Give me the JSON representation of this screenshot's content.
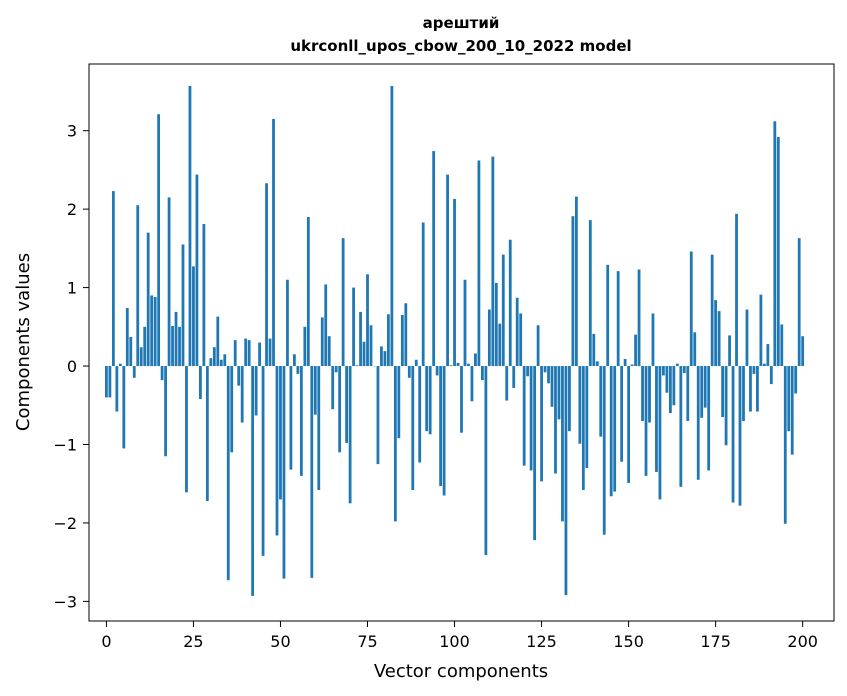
{
  "chart_data": {
    "type": "bar",
    "title_line1": "арештий",
    "title_line2": "ukrconll_upos_cbow_200_10_2022 model",
    "xlabel": "Vector components",
    "ylabel": "Components values",
    "xlim": [
      -5,
      209
    ],
    "ylim": [
      -3.25,
      3.85
    ],
    "xticks": [
      0,
      25,
      50,
      75,
      100,
      125,
      150,
      175,
      200
    ],
    "xtick_labels": [
      "0",
      "25",
      "50",
      "75",
      "100",
      "125",
      "150",
      "175",
      "200"
    ],
    "yticks": [
      -3,
      -2,
      -1,
      0,
      1,
      2,
      3
    ],
    "ytick_labels": [
      "−3",
      "−2",
      "−1",
      "0",
      "1",
      "2",
      "3"
    ],
    "grid": false,
    "bar_color": "#1f77b4",
    "values": [
      -0.4,
      -0.4,
      2.23,
      -0.58,
      0.03,
      -1.05,
      0.74,
      0.37,
      -0.15,
      2.05,
      0.24,
      0.5,
      1.7,
      0.9,
      0.88,
      3.21,
      -0.18,
      -1.15,
      2.15,
      0.51,
      0.69,
      0.5,
      1.55,
      -1.61,
      3.57,
      1.27,
      2.44,
      -0.42,
      1.81,
      -1.72,
      0.1,
      0.24,
      0.63,
      0.08,
      0.15,
      -2.73,
      -1.1,
      0.33,
      -0.25,
      -0.72,
      0.35,
      0.33,
      -2.93,
      -0.63,
      0.3,
      -2.42,
      2.33,
      0.35,
      3.15,
      -2.16,
      -1.7,
      -2.71,
      1.1,
      -1.32,
      0.15,
      -0.1,
      -1.4,
      0.5,
      1.9,
      -2.7,
      -0.62,
      -1.58,
      0.62,
      1.04,
      0.38,
      -0.55,
      -0.08,
      -1.1,
      1.63,
      -0.98,
      -1.75,
      1.0,
      0.01,
      0.69,
      0.31,
      1.17,
      0.52,
      0.0,
      -1.25,
      0.25,
      0.19,
      0.66,
      3.57,
      -1.98,
      -0.92,
      0.65,
      0.8,
      -0.15,
      -1.58,
      0.08,
      -1.23,
      1.83,
      -0.83,
      -0.87,
      2.74,
      -0.12,
      -1.53,
      -1.65,
      2.44,
      0.01,
      2.13,
      0.04,
      -0.85,
      1.1,
      0.03,
      -0.45,
      0.16,
      2.62,
      -0.18,
      -2.41,
      0.72,
      2.67,
      1.06,
      0.54,
      1.42,
      -0.44,
      1.61,
      -0.28,
      0.87,
      0.67,
      -1.27,
      -0.13,
      -1.33,
      -2.22,
      0.52,
      -1.47,
      -0.08,
      -0.22,
      -0.52,
      -1.37,
      -0.68,
      -1.98,
      -2.92,
      -0.83,
      1.91,
      2.16,
      -0.99,
      -1.58,
      -1.3,
      1.86,
      0.41,
      0.06,
      -0.9,
      -2.15,
      1.29,
      -1.66,
      -1.6,
      1.21,
      -1.22,
      0.09,
      -1.49,
      0.02,
      0.4,
      1.23,
      -0.7,
      -1.4,
      -0.72,
      0.67,
      -1.35,
      -1.7,
      -0.12,
      -0.34,
      -0.6,
      -0.5,
      0.03,
      -1.54,
      -0.09,
      -0.7,
      1.46,
      0.43,
      -1.45,
      -0.66,
      -0.53,
      -1.33,
      1.42,
      0.84,
      0.7,
      -0.65,
      -1.01,
      0.39,
      -1.74,
      1.94,
      -1.78,
      -0.7,
      0.72,
      -0.58,
      -0.1,
      -0.58,
      0.91,
      0.03,
      0.28,
      -0.23,
      3.12,
      2.92,
      0.53,
      -2.01,
      -0.83,
      -1.13,
      -0.35,
      1.63,
      0.38
    ]
  }
}
